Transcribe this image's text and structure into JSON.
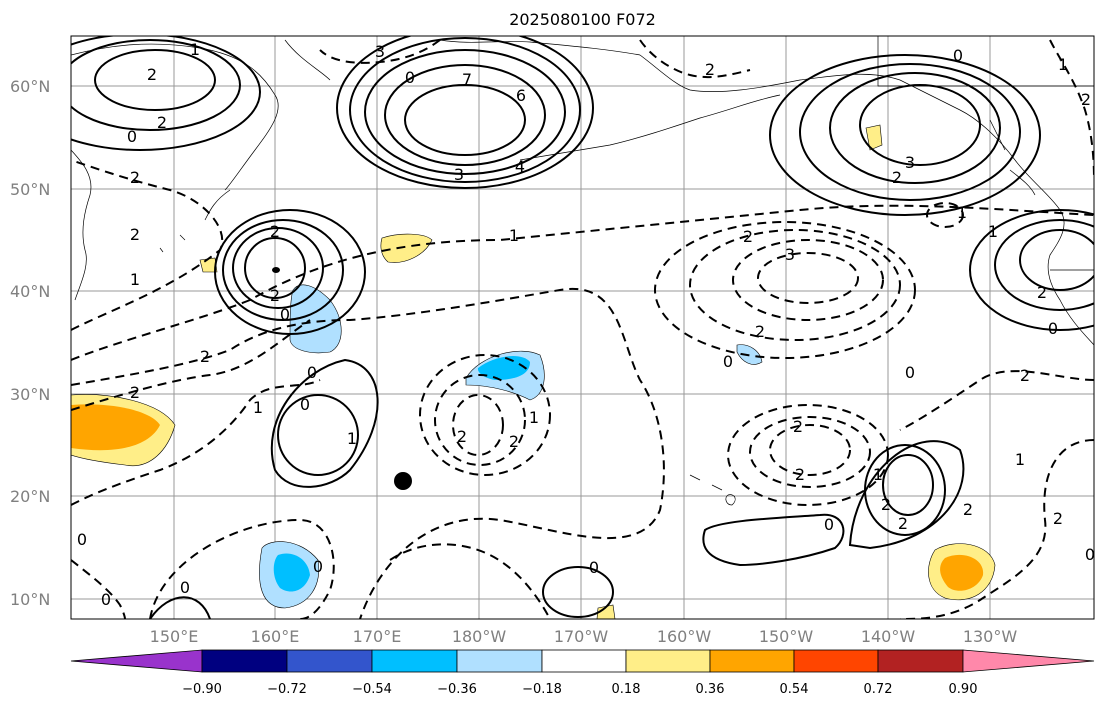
{
  "title": "2025080100 F072",
  "lat_labels": [
    "60°N",
    "50°N",
    "40°N",
    "30°N",
    "20°N",
    "10°N"
  ],
  "lon_labels": [
    "150°E",
    "160°E",
    "170°E",
    "180°W",
    "170°W",
    "160°W",
    "150°W",
    "140°W",
    "130°W"
  ],
  "colorbar": {
    "ticks": [
      "−0.90",
      "−0.72",
      "−0.54",
      "−0.36",
      "−0.18",
      "0.18",
      "0.36",
      "0.54",
      "0.72",
      "0.90"
    ],
    "colors": [
      "#9933cc",
      "#000080",
      "#3355cc",
      "#00bfff",
      "#b0e0ff",
      "#ffffff",
      "#ffee88",
      "#ffa500",
      "#ff4500",
      "#b22222",
      "#ff88aa"
    ]
  },
  "contour_labels": {
    "nw_high": [
      "1",
      "2",
      "2",
      "0"
    ],
    "west_dashed": [
      "2",
      "2",
      "1",
      "2",
      "2"
    ],
    "bering_high": [
      "6",
      "4",
      "3",
      "3",
      "0",
      "7"
    ],
    "ne_high": [
      "0",
      "3",
      "2",
      "2",
      "1"
    ],
    "east_dashed": [
      "2",
      "3",
      "2",
      "0",
      "0"
    ],
    "central_dashed": [
      "1",
      "2",
      "2",
      "0"
    ],
    "west_high": [
      "2",
      "2",
      "0"
    ],
    "mid_low": [
      "0",
      "1",
      "2",
      "2",
      "1",
      "2"
    ],
    "sub_high": [
      "0",
      "1"
    ],
    "east_low": [
      "2",
      "1",
      "2",
      "2",
      "0"
    ],
    "east_high": [
      "2",
      "2",
      "0",
      "1"
    ],
    "south": [
      "0",
      "0",
      "0",
      "0",
      "0"
    ],
    "ak": [
      "1",
      "2",
      "1"
    ]
  }
}
